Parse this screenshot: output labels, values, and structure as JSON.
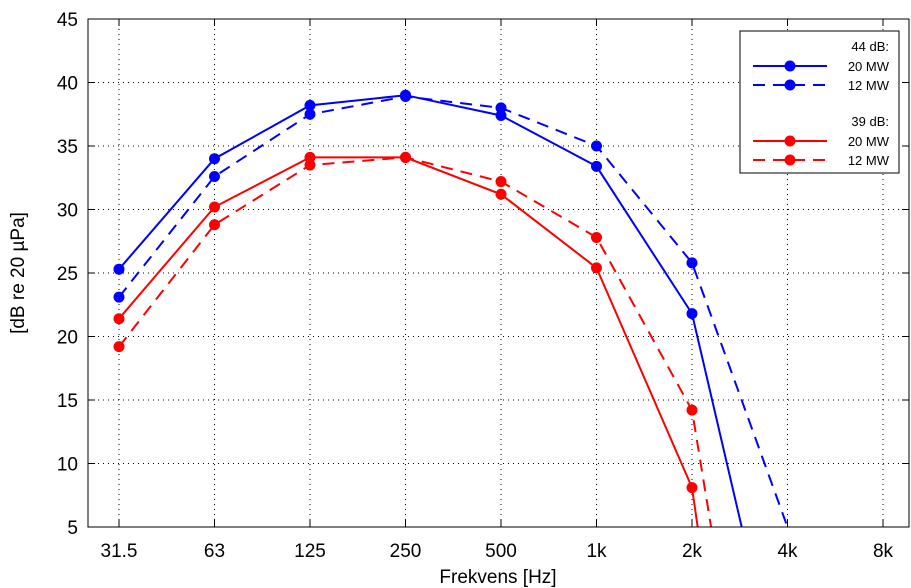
{
  "chart_data": {
    "type": "line",
    "xlabel": "Frekvens [Hz]",
    "ylabel": "[dB re 20 µPa]",
    "categories": [
      "31.5",
      "63",
      "125",
      "250",
      "500",
      "1k",
      "2k",
      "4k",
      "8k"
    ],
    "ylim": [
      5,
      45
    ],
    "yticks": [
      5,
      10,
      15,
      20,
      25,
      30,
      35,
      40,
      45
    ],
    "grid": true,
    "legend_position": "top-right",
    "legend_groups": [
      {
        "header": "44 dB:",
        "entries": [
          "20 MW",
          "12 MW"
        ]
      },
      {
        "header": "39 dB:",
        "entries": [
          "20 MW",
          "12 MW"
        ]
      }
    ],
    "series": [
      {
        "group": "44 dB:",
        "name": "20 MW",
        "color": "#0000ff",
        "dash": "solid",
        "values": [
          25.3,
          34.0,
          38.2,
          39.0,
          37.4,
          33.4,
          21.8,
          null,
          null
        ],
        "tail_end": {
          "x_index": 6.52,
          "y": 5
        }
      },
      {
        "group": "44 dB:",
        "name": "12 MW",
        "color": "#0000ff",
        "dash": "dashed",
        "values": [
          23.1,
          32.6,
          37.5,
          38.9,
          38.0,
          35.0,
          25.8,
          null,
          null
        ],
        "tail_end": {
          "x_index": 7.0,
          "y": 5
        }
      },
      {
        "group": "39 dB:",
        "name": "20 MW",
        "color": "#ff0000",
        "dash": "solid",
        "values": [
          21.4,
          30.2,
          34.1,
          34.1,
          31.2,
          25.4,
          8.1,
          null,
          null
        ],
        "tail_end": {
          "x_index": 6.06,
          "y": 5
        }
      },
      {
        "group": "39 dB:",
        "name": "12 MW",
        "color": "#ff0000",
        "dash": "dashed",
        "values": [
          19.2,
          28.8,
          33.5,
          34.1,
          32.2,
          27.8,
          14.2,
          null,
          null
        ],
        "tail_end": {
          "x_index": 6.2,
          "y": 5
        }
      }
    ]
  }
}
